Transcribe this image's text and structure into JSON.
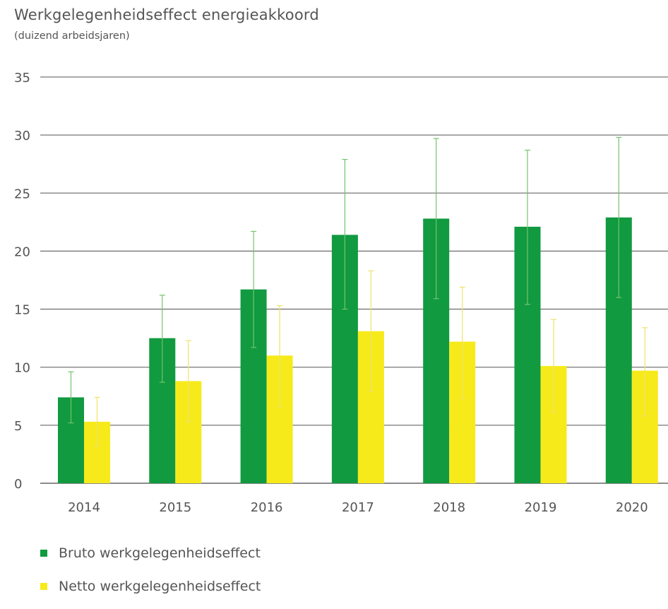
{
  "chart_data": {
    "type": "bar",
    "title": "Werkgelegenheidseffect energieakkoord",
    "subtitle": "(duizend arbeidsjaren)",
    "xlabel": "",
    "ylabel": "",
    "ylim": [
      0,
      35
    ],
    "yticks": [
      0,
      5,
      10,
      15,
      20,
      25,
      30,
      35
    ],
    "grid": true,
    "legend_position": "bottom-left",
    "categories": [
      "2014",
      "2015",
      "2016",
      "2017",
      "2018",
      "2019",
      "2020"
    ],
    "series": [
      {
        "name": "Bruto werkgelegenheidseffect",
        "color": "#119a40",
        "values": [
          7.4,
          12.5,
          16.7,
          21.4,
          22.8,
          22.1,
          22.9
        ],
        "error_low": [
          5.2,
          8.7,
          11.7,
          15.0,
          15.9,
          15.4,
          16.0
        ],
        "error_high": [
          9.6,
          16.2,
          21.7,
          27.9,
          29.7,
          28.7,
          29.8
        ]
      },
      {
        "name": "Netto werkgelegenheidseffect",
        "color": "#f7ea1b",
        "values": [
          5.3,
          8.8,
          11.0,
          13.1,
          12.2,
          10.1,
          9.7
        ],
        "error_low": [
          3.2,
          5.3,
          6.6,
          7.9,
          7.3,
          6.1,
          5.8
        ],
        "error_high": [
          7.4,
          12.3,
          15.3,
          18.3,
          16.9,
          14.1,
          13.4
        ]
      }
    ]
  }
}
